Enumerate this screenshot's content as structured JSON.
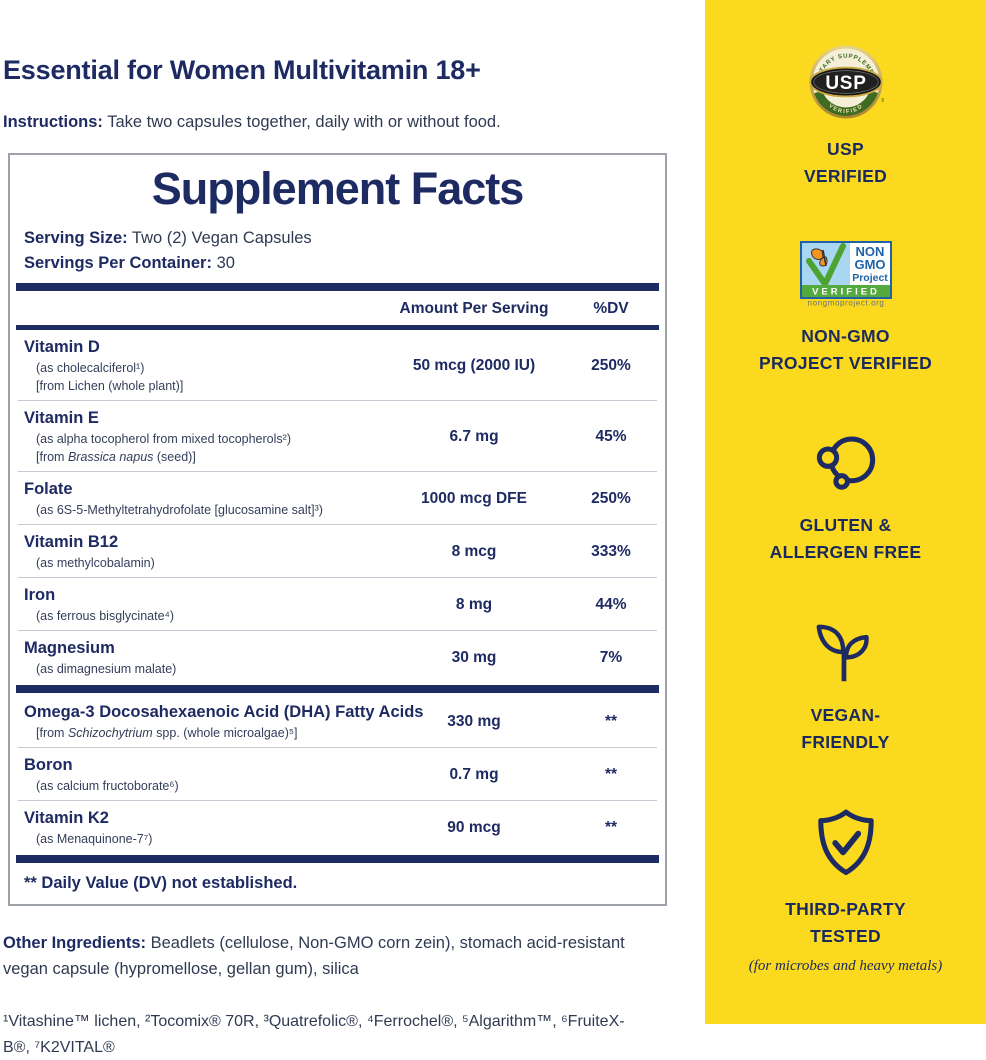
{
  "page_title": "Essential for Women Multivitamin 18+",
  "instructions": {
    "label": "Instructions:",
    "text": " Take two capsules together, daily with or without food."
  },
  "supplement_facts": {
    "title": "Supplement Facts",
    "serving_size_label": "Serving Size:",
    "serving_size_value": " Two (2) Vegan Capsules",
    "servings_label": "Servings Per Container:",
    "servings_value": " 30",
    "col_amount": "Amount Per Serving",
    "col_dv": "%DV",
    "rows": [
      {
        "name": "Vitamin D",
        "subs": [
          [
            {
              "t": "(as cholecalciferol¹)"
            }
          ],
          [
            {
              "t": "[from Lichen (whole plant)]"
            }
          ]
        ],
        "amount": "50 mcg (2000 IU)",
        "dv": "250%",
        "divider": "thin"
      },
      {
        "name": "Vitamin E",
        "subs": [
          [
            {
              "t": "(as alpha tocopherol from mixed tocopherols²)"
            }
          ],
          [
            {
              "t": "[from "
            },
            {
              "t": "Brassica napus",
              "i": true
            },
            {
              "t": " (seed)]"
            }
          ]
        ],
        "amount": "6.7 mg",
        "dv": "45%",
        "divider": "thin"
      },
      {
        "name": "Folate",
        "subs": [
          [
            {
              "t": "(as 6S-5-Methyltetrahydrofolate [glucosamine salt]³)"
            }
          ]
        ],
        "amount": "1000 mcg DFE",
        "dv": "250%",
        "divider": "thin"
      },
      {
        "name": "Vitamin B12",
        "subs": [
          [
            {
              "t": "(as methylcobalamin)"
            }
          ]
        ],
        "amount": "8 mcg",
        "dv": "333%",
        "divider": "thin"
      },
      {
        "name": "Iron",
        "subs": [
          [
            {
              "t": "(as ferrous bisglycinate⁴)"
            }
          ]
        ],
        "amount": "8 mg",
        "dv": "44%",
        "divider": "thin"
      },
      {
        "name": "Magnesium",
        "subs": [
          [
            {
              "t": "(as dimagnesium malate)"
            }
          ]
        ],
        "amount": "30 mg",
        "dv": "7%",
        "divider": "thick"
      },
      {
        "name": "Omega-3 Docosahexaenoic Acid (DHA) Fatty Acids",
        "subs": [
          [
            {
              "t": "[from "
            },
            {
              "t": "Schizochytrium",
              "i": true
            },
            {
              "t": " spp. (whole microalgae)⁵]"
            }
          ]
        ],
        "amount": "330 mg",
        "dv": "**",
        "divider": "thin"
      },
      {
        "name": "Boron",
        "subs": [
          [
            {
              "t": "(as calcium fructoborate⁶)"
            }
          ]
        ],
        "amount": "0.7 mg",
        "dv": "**",
        "divider": "thin"
      },
      {
        "name": "Vitamin K2",
        "subs": [
          [
            {
              "t": "(as Menaquinone-7⁷)"
            }
          ]
        ],
        "amount": "90 mcg",
        "dv": "**",
        "divider": "thick"
      }
    ],
    "dv_note": "** Daily Value (DV) not established."
  },
  "other_ingredients": {
    "label": "Other Ingredients:",
    "text": " Beadlets (cellulose, Non-GMO corn zein), stomach acid-resistant vegan capsule (hypromellose, gellan gum), silica"
  },
  "footnotes": "¹Vitashine™ lichen, ²Tocomix® 70R, ³Quatrefolic®, ⁴Ferrochel®, ⁵Algarithm™, ⁶FruiteX-B®, ⁷K2VITAL®",
  "usp_seal": {
    "arc_top": "DIETARY SUPPLEMENT",
    "center": "USP",
    "arc_bottom": "VERIFIED"
  },
  "non_gmo_seal": {
    "line1": "NON",
    "line2": "GMO",
    "line3": "Project",
    "verified": "VERIFIED",
    "url": "nongmoproject.org"
  },
  "badges": [
    {
      "line1": "USP",
      "line2": "VERIFIED"
    },
    {
      "line1": "NON-GMO",
      "line2": "PROJECT VERIFIED"
    },
    {
      "line1": "GLUTEN &",
      "line2": "ALLERGEN FREE"
    },
    {
      "line1": "VEGAN-",
      "line2": "FRIENDLY"
    },
    {
      "line1": "THIRD-PARTY",
      "line2": "TESTED",
      "sub": "(for microbes and heavy metals)"
    }
  ],
  "colors": {
    "navy": "#1E2B63",
    "yellow": "#FBD91E",
    "usp_gold": "#C9A944",
    "usp_green": "#3E6B22",
    "ngp_blue": "#1E63A7",
    "ngp_sky": "#A9D7F2",
    "ngp_green": "#54A93F",
    "butterfly_orange": "#F7941D"
  }
}
